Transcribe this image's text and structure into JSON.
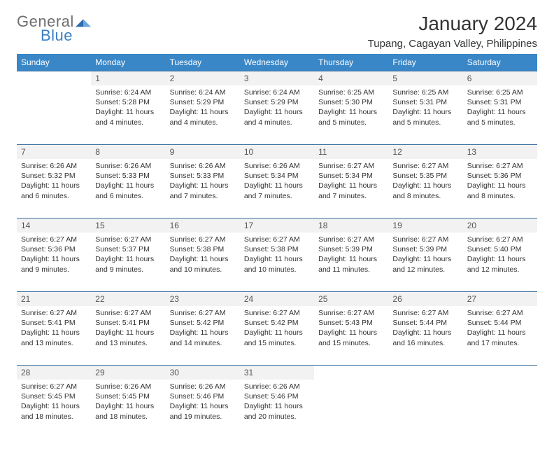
{
  "brand": {
    "part1": "General",
    "part2": "Blue"
  },
  "title": "January 2024",
  "location": "Tupang, Cagayan Valley, Philippines",
  "colors": {
    "header_bg": "#3a87c7",
    "header_text": "#ffffff",
    "daynum_bg": "#f2f2f2",
    "rule": "#3a6fa0",
    "logo_gray": "#6e6e6e",
    "logo_blue": "#3a7fc4"
  },
  "weekdays": [
    "Sunday",
    "Monday",
    "Tuesday",
    "Wednesday",
    "Thursday",
    "Friday",
    "Saturday"
  ],
  "weeks": [
    [
      null,
      {
        "n": "1",
        "sr": "Sunrise: 6:24 AM",
        "ss": "Sunset: 5:28 PM",
        "d1": "Daylight: 11 hours",
        "d2": "and 4 minutes."
      },
      {
        "n": "2",
        "sr": "Sunrise: 6:24 AM",
        "ss": "Sunset: 5:29 PM",
        "d1": "Daylight: 11 hours",
        "d2": "and 4 minutes."
      },
      {
        "n": "3",
        "sr": "Sunrise: 6:24 AM",
        "ss": "Sunset: 5:29 PM",
        "d1": "Daylight: 11 hours",
        "d2": "and 4 minutes."
      },
      {
        "n": "4",
        "sr": "Sunrise: 6:25 AM",
        "ss": "Sunset: 5:30 PM",
        "d1": "Daylight: 11 hours",
        "d2": "and 5 minutes."
      },
      {
        "n": "5",
        "sr": "Sunrise: 6:25 AM",
        "ss": "Sunset: 5:31 PM",
        "d1": "Daylight: 11 hours",
        "d2": "and 5 minutes."
      },
      {
        "n": "6",
        "sr": "Sunrise: 6:25 AM",
        "ss": "Sunset: 5:31 PM",
        "d1": "Daylight: 11 hours",
        "d2": "and 5 minutes."
      }
    ],
    [
      {
        "n": "7",
        "sr": "Sunrise: 6:26 AM",
        "ss": "Sunset: 5:32 PM",
        "d1": "Daylight: 11 hours",
        "d2": "and 6 minutes."
      },
      {
        "n": "8",
        "sr": "Sunrise: 6:26 AM",
        "ss": "Sunset: 5:33 PM",
        "d1": "Daylight: 11 hours",
        "d2": "and 6 minutes."
      },
      {
        "n": "9",
        "sr": "Sunrise: 6:26 AM",
        "ss": "Sunset: 5:33 PM",
        "d1": "Daylight: 11 hours",
        "d2": "and 7 minutes."
      },
      {
        "n": "10",
        "sr": "Sunrise: 6:26 AM",
        "ss": "Sunset: 5:34 PM",
        "d1": "Daylight: 11 hours",
        "d2": "and 7 minutes."
      },
      {
        "n": "11",
        "sr": "Sunrise: 6:27 AM",
        "ss": "Sunset: 5:34 PM",
        "d1": "Daylight: 11 hours",
        "d2": "and 7 minutes."
      },
      {
        "n": "12",
        "sr": "Sunrise: 6:27 AM",
        "ss": "Sunset: 5:35 PM",
        "d1": "Daylight: 11 hours",
        "d2": "and 8 minutes."
      },
      {
        "n": "13",
        "sr": "Sunrise: 6:27 AM",
        "ss": "Sunset: 5:36 PM",
        "d1": "Daylight: 11 hours",
        "d2": "and 8 minutes."
      }
    ],
    [
      {
        "n": "14",
        "sr": "Sunrise: 6:27 AM",
        "ss": "Sunset: 5:36 PM",
        "d1": "Daylight: 11 hours",
        "d2": "and 9 minutes."
      },
      {
        "n": "15",
        "sr": "Sunrise: 6:27 AM",
        "ss": "Sunset: 5:37 PM",
        "d1": "Daylight: 11 hours",
        "d2": "and 9 minutes."
      },
      {
        "n": "16",
        "sr": "Sunrise: 6:27 AM",
        "ss": "Sunset: 5:38 PM",
        "d1": "Daylight: 11 hours",
        "d2": "and 10 minutes."
      },
      {
        "n": "17",
        "sr": "Sunrise: 6:27 AM",
        "ss": "Sunset: 5:38 PM",
        "d1": "Daylight: 11 hours",
        "d2": "and 10 minutes."
      },
      {
        "n": "18",
        "sr": "Sunrise: 6:27 AM",
        "ss": "Sunset: 5:39 PM",
        "d1": "Daylight: 11 hours",
        "d2": "and 11 minutes."
      },
      {
        "n": "19",
        "sr": "Sunrise: 6:27 AM",
        "ss": "Sunset: 5:39 PM",
        "d1": "Daylight: 11 hours",
        "d2": "and 12 minutes."
      },
      {
        "n": "20",
        "sr": "Sunrise: 6:27 AM",
        "ss": "Sunset: 5:40 PM",
        "d1": "Daylight: 11 hours",
        "d2": "and 12 minutes."
      }
    ],
    [
      {
        "n": "21",
        "sr": "Sunrise: 6:27 AM",
        "ss": "Sunset: 5:41 PM",
        "d1": "Daylight: 11 hours",
        "d2": "and 13 minutes."
      },
      {
        "n": "22",
        "sr": "Sunrise: 6:27 AM",
        "ss": "Sunset: 5:41 PM",
        "d1": "Daylight: 11 hours",
        "d2": "and 13 minutes."
      },
      {
        "n": "23",
        "sr": "Sunrise: 6:27 AM",
        "ss": "Sunset: 5:42 PM",
        "d1": "Daylight: 11 hours",
        "d2": "and 14 minutes."
      },
      {
        "n": "24",
        "sr": "Sunrise: 6:27 AM",
        "ss": "Sunset: 5:42 PM",
        "d1": "Daylight: 11 hours",
        "d2": "and 15 minutes."
      },
      {
        "n": "25",
        "sr": "Sunrise: 6:27 AM",
        "ss": "Sunset: 5:43 PM",
        "d1": "Daylight: 11 hours",
        "d2": "and 15 minutes."
      },
      {
        "n": "26",
        "sr": "Sunrise: 6:27 AM",
        "ss": "Sunset: 5:44 PM",
        "d1": "Daylight: 11 hours",
        "d2": "and 16 minutes."
      },
      {
        "n": "27",
        "sr": "Sunrise: 6:27 AM",
        "ss": "Sunset: 5:44 PM",
        "d1": "Daylight: 11 hours",
        "d2": "and 17 minutes."
      }
    ],
    [
      {
        "n": "28",
        "sr": "Sunrise: 6:27 AM",
        "ss": "Sunset: 5:45 PM",
        "d1": "Daylight: 11 hours",
        "d2": "and 18 minutes."
      },
      {
        "n": "29",
        "sr": "Sunrise: 6:26 AM",
        "ss": "Sunset: 5:45 PM",
        "d1": "Daylight: 11 hours",
        "d2": "and 18 minutes."
      },
      {
        "n": "30",
        "sr": "Sunrise: 6:26 AM",
        "ss": "Sunset: 5:46 PM",
        "d1": "Daylight: 11 hours",
        "d2": "and 19 minutes."
      },
      {
        "n": "31",
        "sr": "Sunrise: 6:26 AM",
        "ss": "Sunset: 5:46 PM",
        "d1": "Daylight: 11 hours",
        "d2": "and 20 minutes."
      },
      null,
      null,
      null
    ]
  ]
}
